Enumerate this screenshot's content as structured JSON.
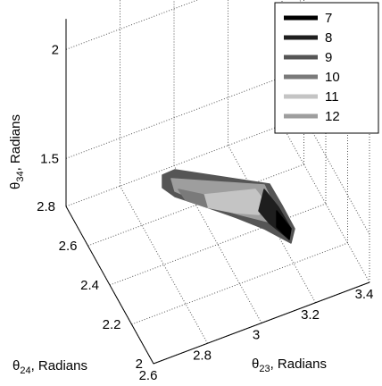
{
  "chart_data": {
    "type": "scatter",
    "projection": "3d",
    "xlabel": "θ23, Radians",
    "ylabel": "θ24, Radians",
    "zlabel": "θ34, Radians",
    "xticks": [
      "2.6",
      "2.8",
      "3",
      "3.2",
      "3.4"
    ],
    "yticks": [
      "2",
      "2.2",
      "2.4",
      "2.6",
      "2.8"
    ],
    "zticks": [
      "1.5",
      "2"
    ],
    "xlim": [
      2.6,
      3.4
    ],
    "ylim": [
      2.0,
      2.8
    ],
    "zlim": [
      1.5,
      2.0
    ],
    "grid": true,
    "legend_position": "top-right",
    "series": [
      {
        "name": "7",
        "color": "#000000"
      },
      {
        "name": "8",
        "color": "#1e1e1e"
      },
      {
        "name": "9",
        "color": "#555555"
      },
      {
        "name": "10",
        "color": "#7a7a7a"
      },
      {
        "name": "11",
        "color": "#c4c4c4"
      },
      {
        "name": "12",
        "color": "#9e9e9e"
      }
    ]
  }
}
